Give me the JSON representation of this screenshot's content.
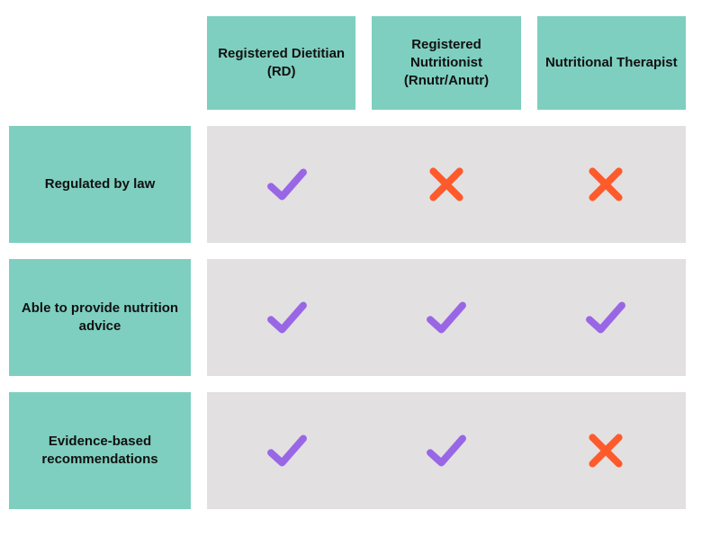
{
  "table": {
    "type": "comparison-matrix",
    "header_bg": "#7ecfc0",
    "row_header_bg": "#7ecfc0",
    "strip_bg": "#e2e0e1",
    "text_color": "#111111",
    "check_color": "#9966e6",
    "cross_color": "#ff5a2b",
    "stroke_width": 7,
    "columns": [
      {
        "label": "Registered Dietitian (RD)"
      },
      {
        "label": "Registered Nutritionist (Rnutr/Anutr)"
      },
      {
        "label": "Nutritional Therapist"
      }
    ],
    "rows": [
      {
        "label": "Regulated by law",
        "values": [
          "check",
          "cross",
          "cross"
        ]
      },
      {
        "label": "Able to provide nutrition advice",
        "values": [
          "check",
          "check",
          "check"
        ]
      },
      {
        "label": "Evidence-based recommendations",
        "values": [
          "check",
          "check",
          "cross"
        ]
      }
    ]
  }
}
